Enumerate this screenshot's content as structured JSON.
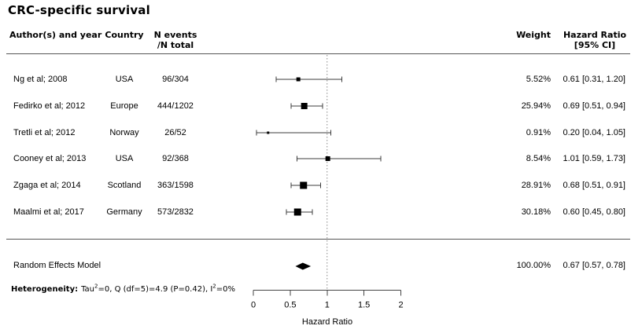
{
  "title": "CRC-specific survival",
  "columns": {
    "author": "Author(s) and year",
    "country": "Country",
    "events_line1": "N events",
    "events_line2": "/N total",
    "weight": "Weight",
    "hr_line1": "Hazard Ratio",
    "hr_line2": "[95% CI]"
  },
  "heterogeneity": {
    "label": "Heterogeneity:",
    "part1": "Tau",
    "sup1": "2",
    "part2": "=0, Q (df=5)=4.9 (P=0.42), I",
    "sup2": "2",
    "part3": "=0%"
  },
  "chart_data": {
    "type": "forest",
    "title": "CRC-specific survival",
    "xlabel": "Hazard Ratio",
    "x_range": [
      0,
      2
    ],
    "reference_line": 1,
    "x_ticks": [
      {
        "value": 0,
        "label": "0"
      },
      {
        "value": 0.5,
        "label": "0.5"
      },
      {
        "value": 1,
        "label": "1"
      },
      {
        "value": 1.5,
        "label": "1.5"
      },
      {
        "value": 2,
        "label": "2"
      }
    ],
    "studies": [
      {
        "author": "Ng et al; 2008",
        "country": "USA",
        "n_events_total": "96/304",
        "weight_pct": 5.52,
        "weight_label": "5.52%",
        "hr": 0.61,
        "ci_low": 0.31,
        "ci_high": 1.2,
        "hr_ci_label": "0.61 [0.31, 1.20]"
      },
      {
        "author": "Fedirko et al; 2012",
        "country": "Europe",
        "n_events_total": "444/1202",
        "weight_pct": 25.94,
        "weight_label": "25.94%",
        "hr": 0.69,
        "ci_low": 0.51,
        "ci_high": 0.94,
        "hr_ci_label": "0.69 [0.51, 0.94]"
      },
      {
        "author": "Tretli et al; 2012",
        "country": "Norway",
        "n_events_total": "26/52",
        "weight_pct": 0.91,
        "weight_label": "0.91%",
        "hr": 0.2,
        "ci_low": 0.04,
        "ci_high": 1.05,
        "hr_ci_label": "0.20 [0.04, 1.05]"
      },
      {
        "author": "Cooney et al; 2013",
        "country": "USA",
        "n_events_total": "92/368",
        "weight_pct": 8.54,
        "weight_label": "8.54%",
        "hr": 1.01,
        "ci_low": 0.59,
        "ci_high": 1.73,
        "hr_ci_label": "1.01 [0.59, 1.73]"
      },
      {
        "author": "Zgaga et al; 2014",
        "country": "Scotland",
        "n_events_total": "363/1598",
        "weight_pct": 28.91,
        "weight_label": "28.91%",
        "hr": 0.68,
        "ci_low": 0.51,
        "ci_high": 0.91,
        "hr_ci_label": "0.68 [0.51, 0.91]"
      },
      {
        "author": "Maalmi et al; 2017",
        "country": "Germany",
        "n_events_total": "573/2832",
        "weight_pct": 30.18,
        "weight_label": "30.18%",
        "hr": 0.6,
        "ci_low": 0.45,
        "ci_high": 0.8,
        "hr_ci_label": "0.60 [0.45, 0.80]"
      }
    ],
    "summary": {
      "label": "Random Effects Model",
      "weight_pct": 100.0,
      "weight_label": "100.00%",
      "hr": 0.67,
      "ci_low": 0.57,
      "ci_high": 0.78,
      "hr_ci_label": "0.67 [0.57, 0.78]"
    },
    "heterogeneity_text": "Heterogeneity: Tau2=0, Q (df=5)=4.9 (P=0.42), I2=0%"
  }
}
